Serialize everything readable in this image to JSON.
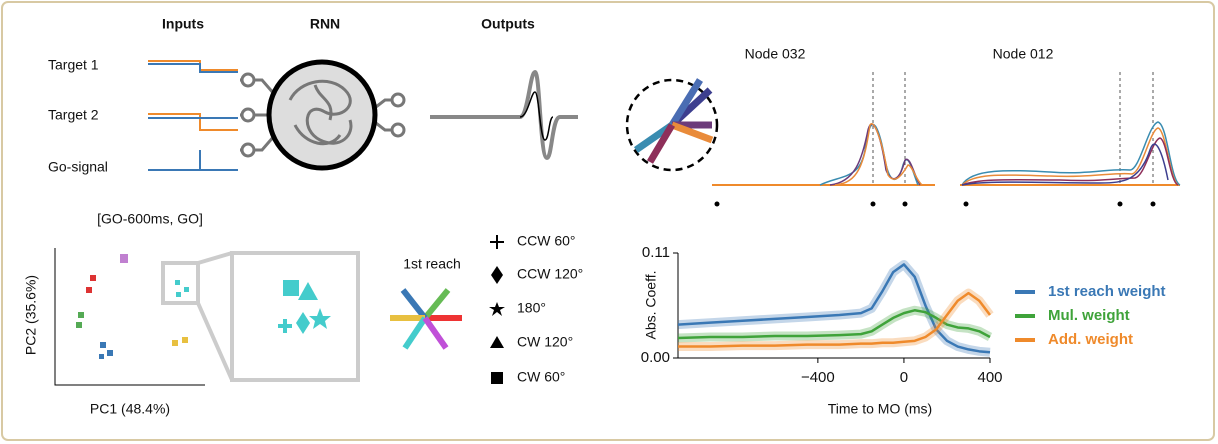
{
  "header": {
    "inputs": "Inputs",
    "rnn": "RNN",
    "outputs": "Outputs"
  },
  "input_rows": [
    "Target 1",
    "Target 2",
    "Go-signal"
  ],
  "nodes": [
    "Node 032",
    "Node 012"
  ],
  "pca": {
    "title": "[GO-600ms, GO]",
    "xlabel": "PC1 (48.4%)",
    "ylabel": "PC2 (35.6%)"
  },
  "reach_label": "1st reach",
  "shape_legend": [
    "CCW 60°",
    "CCW 120°",
    "180°",
    "CW 120°",
    "CW 60°"
  ],
  "chart_data": {
    "type": "line",
    "xlabel": "Time to MO (ms)",
    "ylabel": "Abs. Coeff.",
    "x": [
      -1050,
      -900,
      -750,
      -600,
      -450,
      -300,
      -200,
      -150,
      -100,
      -50,
      0,
      50,
      100,
      150,
      200,
      250,
      300,
      350,
      400
    ],
    "xlim": [
      -1050,
      400
    ],
    "xticks": [
      {
        "value": -400,
        "label": "−400"
      },
      0,
      400
    ],
    "ylim": [
      0,
      0.11
    ],
    "yticks": [
      {
        "value": 0,
        "label": "0.00"
      },
      0.11
    ],
    "legend": "right",
    "series": [
      {
        "name": "1st reach weight",
        "color": "#3a78b5",
        "values": [
          0.035,
          0.037,
          0.039,
          0.041,
          0.043,
          0.045,
          0.047,
          0.052,
          0.07,
          0.09,
          0.098,
          0.085,
          0.055,
          0.03,
          0.018,
          0.012,
          0.009,
          0.007,
          0.006
        ]
      },
      {
        "name": "Mul. weight",
        "color": "#3fa33a",
        "values": [
          0.021,
          0.022,
          0.022,
          0.023,
          0.023,
          0.024,
          0.025,
          0.028,
          0.035,
          0.042,
          0.047,
          0.05,
          0.048,
          0.042,
          0.035,
          0.032,
          0.031,
          0.028,
          0.022
        ]
      },
      {
        "name": "Add. weight",
        "color": "#ef8a2b",
        "values": [
          0.012,
          0.012,
          0.013,
          0.013,
          0.014,
          0.014,
          0.015,
          0.015,
          0.016,
          0.016,
          0.017,
          0.018,
          0.022,
          0.03,
          0.045,
          0.06,
          0.068,
          0.06,
          0.045
        ]
      }
    ]
  }
}
